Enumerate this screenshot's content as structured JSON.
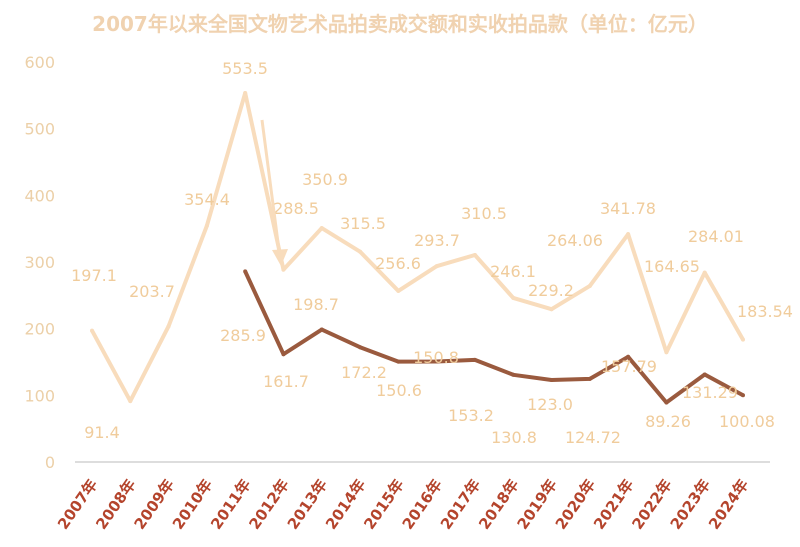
{
  "chart_data": {
    "type": "line",
    "title": "2007年以来全国文物艺术品拍卖成交额和实收拍品款（单位：亿元）",
    "categories": [
      "2007年",
      "2008年",
      "2009年",
      "2010年",
      "2011年",
      "2012年",
      "2013年",
      "2014年",
      "2015年",
      "2016年",
      "2017年",
      "2018年",
      "2019年",
      "2020年",
      "2021年",
      "2022年",
      "2023年",
      "2024年"
    ],
    "ylim": [
      0,
      600
    ],
    "yticks": [
      0,
      100,
      200,
      300,
      400,
      500,
      600
    ],
    "grid": false,
    "series": [
      {
        "values": [
          197.1,
          91.4,
          203.7,
          354.4,
          553.5,
          288.5,
          350.9,
          315.5,
          256.6,
          293.7,
          310.5,
          246.1,
          229.2,
          264.06,
          341.78,
          164.65,
          284.01,
          183.54
        ],
        "labels": [
          "197.1",
          "91.4",
          "203.7",
          "354.4",
          "553.5",
          "288.5",
          "350.9",
          "315.5",
          "256.6",
          "293.7",
          "310.5",
          "246.1",
          "229.2",
          "264.06",
          "341.78",
          "164.65",
          "284.01",
          "183.54"
        ],
        "color": "#f8dcbc"
      },
      {
        "values": [
          null,
          null,
          null,
          null,
          285.9,
          161.7,
          198.7,
          172.2,
          150.6,
          150.8,
          153.2,
          130.8,
          123.0,
          124.72,
          157.79,
          89.26,
          131.29,
          100.08
        ],
        "labels": [
          null,
          null,
          null,
          null,
          "285.9",
          "161.7",
          "198.7",
          "172.2",
          "150.6",
          "150.8",
          "153.2",
          "130.8",
          "123.0",
          "124.72",
          "157.79",
          "89.26",
          "131.29",
          "100.08"
        ],
        "color": "#9a5a3e"
      }
    ],
    "colors": {
      "label": "#f0cc9c",
      "axis_tick": "#ecd0a8",
      "x_tick": "#b4442c",
      "baseline": "#dddddd"
    }
  }
}
